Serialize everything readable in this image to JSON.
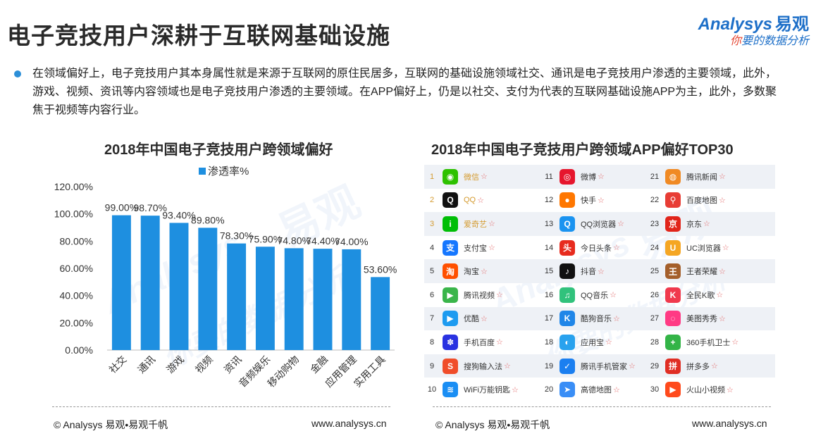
{
  "page": {
    "title": "电子竞技用户深耕于互联网基础设施",
    "summary": "在领域偏好上，电子竞技用户其本身属性就是来源于互联网的原住民居多，互联网的基础设施领域社交、通讯是电子竞技用户渗透的主要领域，此外，游戏、视频、资讯等内容领域也是电子竞技用户渗透的主要领域。在APP偏好上，仍是以社交、支付为代表的互联网基础设施APP为主，此外，多数聚焦于视频等内容行业。"
  },
  "logo": {
    "brand_en": "Analysys",
    "brand_cn": "易观",
    "slogan_red": "你",
    "slogan_rest": "要的数据分析"
  },
  "watermark": {
    "cn": "易观",
    "en": "Analysys",
    "slogan": "你要的数据分析"
  },
  "left_chart": {
    "title": "2018年中国电子竞技用户跨领域偏好",
    "legend_label": "渗透率%",
    "footer_left": "© Analysys 易观•易观千帆",
    "footer_right": "www.analysys.cn"
  },
  "chart_data": {
    "type": "bar",
    "title": "2018年中国电子竞技用户跨领域偏好",
    "categories": [
      "社交",
      "通讯",
      "游戏",
      "视频",
      "资讯",
      "音频娱乐",
      "移动购物",
      "金融",
      "应用管理",
      "实用工具"
    ],
    "series": [
      {
        "name": "渗透率%",
        "values": [
          99.0,
          98.7,
          93.4,
          89.8,
          78.3,
          75.9,
          74.8,
          74.4,
          74.0,
          53.6
        ]
      }
    ],
    "value_labels": [
      "99.00%",
      "98.70%",
      "93.40%",
      "89.80%",
      "78.30%",
      "75.90%",
      "74.80%",
      "74.40%",
      "74.00%",
      "53.60%"
    ],
    "y_ticks": [
      "0.00%",
      "20.00%",
      "40.00%",
      "60.00%",
      "80.00%",
      "100.00%",
      "120.00%"
    ],
    "ylim": [
      0,
      120
    ],
    "grid": false,
    "legend": "top",
    "bar_color": "#1e8fe0"
  },
  "right_chart": {
    "title": "2018年中国电子竞技用户跨领域APP偏好TOP30",
    "footer_left": "© Analysys 易观•易观千帆",
    "footer_right": "www.analysys.cn",
    "star": "☆",
    "apps": [
      {
        "rank": "1",
        "name": "微信",
        "icon": "wechat-icon",
        "color": "#2dc100",
        "glyph": "◉"
      },
      {
        "rank": "2",
        "name": "QQ",
        "icon": "qq-icon",
        "color": "#111111",
        "glyph": "Q"
      },
      {
        "rank": "3",
        "name": "爱奇艺",
        "icon": "iqiyi-icon",
        "color": "#00be06",
        "glyph": "i"
      },
      {
        "rank": "4",
        "name": "支付宝",
        "icon": "alipay-icon",
        "color": "#1677ff",
        "glyph": "支"
      },
      {
        "rank": "5",
        "name": "淘宝",
        "icon": "taobao-icon",
        "color": "#ff5000",
        "glyph": "淘"
      },
      {
        "rank": "6",
        "name": "腾讯视频",
        "icon": "tencent-video-icon",
        "color": "#3ab54a",
        "glyph": "▶"
      },
      {
        "rank": "7",
        "name": "优酷",
        "icon": "youku-icon",
        "color": "#1d9bf0",
        "glyph": "▶"
      },
      {
        "rank": "8",
        "name": "手机百度",
        "icon": "baidu-icon",
        "color": "#2932e1",
        "glyph": "✽"
      },
      {
        "rank": "9",
        "name": "搜狗输入法",
        "icon": "sogou-input-icon",
        "color": "#f04d2a",
        "glyph": "S"
      },
      {
        "rank": "10",
        "name": "WiFi万能钥匙",
        "icon": "wifi-key-icon",
        "color": "#1a8ef4",
        "glyph": "≋"
      },
      {
        "rank": "11",
        "name": "微博",
        "icon": "weibo-icon",
        "color": "#e6162d",
        "glyph": "◎"
      },
      {
        "rank": "12",
        "name": "快手",
        "icon": "kuaishou-icon",
        "color": "#ff7700",
        "glyph": "●"
      },
      {
        "rank": "13",
        "name": "QQ浏览器",
        "icon": "qq-browser-icon",
        "color": "#1a93f0",
        "glyph": "Q"
      },
      {
        "rank": "14",
        "name": "今日头条",
        "icon": "toutiao-icon",
        "color": "#e72b1e",
        "glyph": "头"
      },
      {
        "rank": "15",
        "name": "抖音",
        "icon": "douyin-icon",
        "color": "#111111",
        "glyph": "♪"
      },
      {
        "rank": "16",
        "name": "QQ音乐",
        "icon": "qq-music-icon",
        "color": "#31c27c",
        "glyph": "♫"
      },
      {
        "rank": "17",
        "name": "酷狗音乐",
        "icon": "kugou-icon",
        "color": "#2086e8",
        "glyph": "K"
      },
      {
        "rank": "18",
        "name": "应用宝",
        "icon": "yingyongbao-icon",
        "color": "#29a2ee",
        "glyph": "◐"
      },
      {
        "rank": "19",
        "name": "腾讯手机管家",
        "icon": "tencent-manager-icon",
        "color": "#1b7ff0",
        "glyph": "✓"
      },
      {
        "rank": "20",
        "name": "高德地图",
        "icon": "amap-icon",
        "color": "#3a8ef6",
        "glyph": "➤"
      },
      {
        "rank": "21",
        "name": "腾讯新闻",
        "icon": "tencent-news-icon",
        "color": "#f08a24",
        "glyph": "◍"
      },
      {
        "rank": "22",
        "name": "百度地图",
        "icon": "baidu-map-icon",
        "color": "#e83d35",
        "glyph": "⚲"
      },
      {
        "rank": "23",
        "name": "京东",
        "icon": "jd-icon",
        "color": "#e1251b",
        "glyph": "京"
      },
      {
        "rank": "24",
        "name": "UC浏览器",
        "icon": "uc-browser-icon",
        "color": "#f5a623",
        "glyph": "U"
      },
      {
        "rank": "25",
        "name": "王者荣耀",
        "icon": "honor-of-kings-icon",
        "color": "#a45f2b",
        "glyph": "王"
      },
      {
        "rank": "26",
        "name": "全民K歌",
        "icon": "wesing-icon",
        "color": "#f0394d",
        "glyph": "K"
      },
      {
        "rank": "27",
        "name": "美图秀秀",
        "icon": "meitu-icon",
        "color": "#ff3a84",
        "glyph": "◌"
      },
      {
        "rank": "28",
        "name": "360手机卫士",
        "icon": "360-guard-icon",
        "color": "#33b447",
        "glyph": "+"
      },
      {
        "rank": "29",
        "name": "拼多多",
        "icon": "pinduoduo-icon",
        "color": "#e02e24",
        "glyph": "拼"
      },
      {
        "rank": "30",
        "name": "火山小视频",
        "icon": "huoshan-icon",
        "color": "#ff4a1c",
        "glyph": "▶"
      }
    ]
  }
}
